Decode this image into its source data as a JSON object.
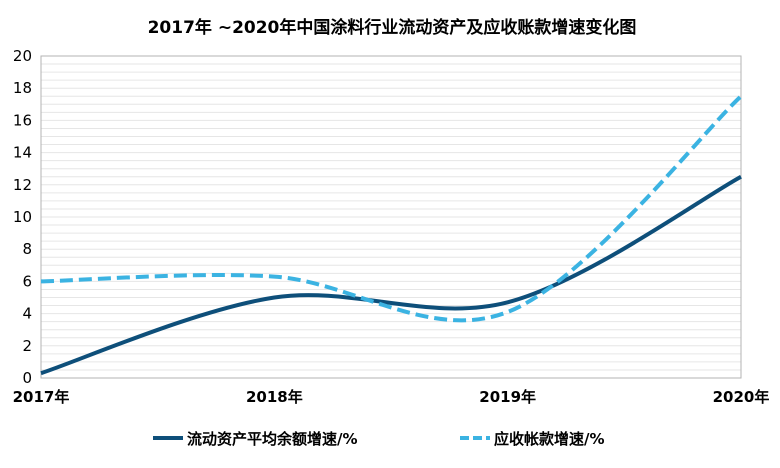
{
  "chart_data": {
    "type": "line",
    "title": "2017年 ~2020年中国涂料行业流动资产及应收账款增速变化图",
    "xlabel": "",
    "ylabel": "",
    "categories": [
      "2017年",
      "2018年",
      "2019年",
      "2020年"
    ],
    "ylim": [
      0,
      20
    ],
    "yticks": [
      0,
      2,
      4,
      6,
      8,
      10,
      12,
      14,
      16,
      18,
      20
    ],
    "grid": true,
    "legend_position": "bottom",
    "series": [
      {
        "name": "流动资产平均余额增速/%",
        "values": [
          0.3,
          5.0,
          4.7,
          12.5
        ],
        "color": "#0e4f7a",
        "style": "solid"
      },
      {
        "name": "应收帐款增速/%",
        "values": [
          6.0,
          6.3,
          4.1,
          17.5
        ],
        "color": "#3bb3e2",
        "style": "dashed"
      }
    ]
  }
}
